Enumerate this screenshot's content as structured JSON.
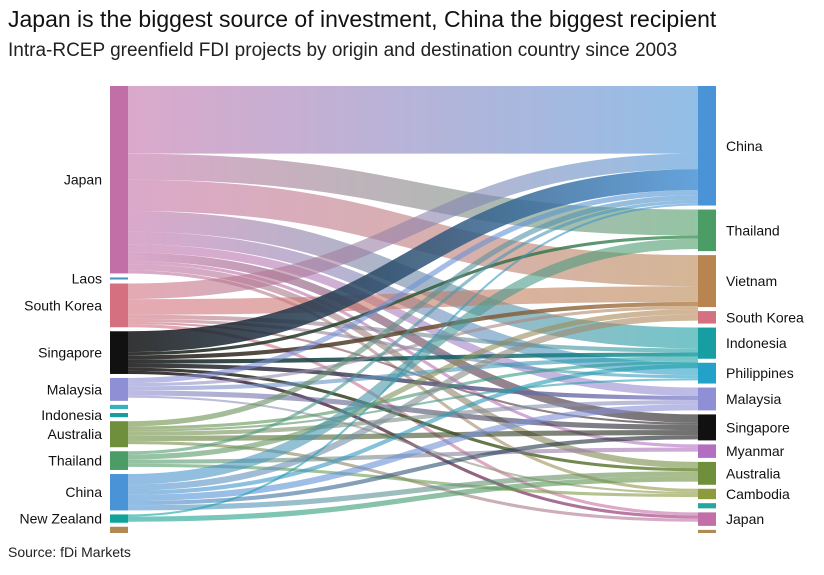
{
  "title": "Japan is the biggest source of investment, China the biggest recipient",
  "subtitle": "Intra-RCEP greenfield FDI projects by origin and destination country since 2003",
  "source": "Source: fDi Markets",
  "chart_data": {
    "type": "sankey",
    "origins": [
      {
        "name": "Japan",
        "value": 180,
        "color": "#c26fa7"
      },
      {
        "name": "Laos",
        "value": 2,
        "color": "#4a93c9"
      },
      {
        "name": "South Korea",
        "value": 42,
        "color": "#d4707f"
      },
      {
        "name": "Singapore",
        "value": 41,
        "color": "#111111"
      },
      {
        "name": "Malaysia",
        "value": 22,
        "color": "#8f8fd6"
      },
      {
        "name": "",
        "value": 4,
        "color": "#36b2bd"
      },
      {
        "name": "Indonesia",
        "value": 4,
        "color": "#169e9e"
      },
      {
        "name": "Australia",
        "value": 25,
        "color": "#6f8f3d"
      },
      {
        "name": "Thailand",
        "value": 18,
        "color": "#4c9c66"
      },
      {
        "name": "China",
        "value": 35,
        "color": "#4a93d6"
      },
      {
        "name": "New Zealand",
        "value": 8,
        "color": "#11a39a"
      },
      {
        "name": "",
        "value": 6,
        "color": "#b08a55"
      }
    ],
    "destinations": [
      {
        "name": "China",
        "value": 115,
        "color": "#4a93d6"
      },
      {
        "name": "Thailand",
        "value": 40,
        "color": "#4c9c66"
      },
      {
        "name": "Vietnam",
        "value": 50,
        "color": "#b88550"
      },
      {
        "name": "South Korea",
        "value": 12,
        "color": "#d4707f"
      },
      {
        "name": "Indonesia",
        "value": 30,
        "color": "#169ea3"
      },
      {
        "name": "Philippines",
        "value": 20,
        "color": "#23a1c9"
      },
      {
        "name": "Malaysia",
        "value": 22,
        "color": "#8f8fd6"
      },
      {
        "name": "Singapore",
        "value": 25,
        "color": "#111111"
      },
      {
        "name": "Myanmar",
        "value": 13,
        "color": "#b26fc2"
      },
      {
        "name": "Australia",
        "value": 22,
        "color": "#6f8f3d"
      },
      {
        "name": "Cambodia",
        "value": 10,
        "color": "#8e9a3e"
      },
      {
        "name": "",
        "value": 5,
        "color": "#27a5a0"
      },
      {
        "name": "Japan",
        "value": 13,
        "color": "#c26fa7"
      },
      {
        "name": "",
        "value": 3,
        "color": "#b08a55"
      }
    ],
    "flows": [
      {
        "from": "Japan",
        "to": "China",
        "value": 65
      },
      {
        "from": "Japan",
        "to": "Thailand",
        "value": 25
      },
      {
        "from": "Japan",
        "to": "Vietnam",
        "value": 30
      },
      {
        "from": "Japan",
        "to": "Indonesia",
        "value": 20
      },
      {
        "from": "Japan",
        "to": "Philippines",
        "value": 12
      },
      {
        "from": "Japan",
        "to": "Malaysia",
        "value": 8
      },
      {
        "from": "Japan",
        "to": "Singapore",
        "value": 8
      },
      {
        "from": "Japan",
        "to": "Australia",
        "value": 6
      },
      {
        "from": "Japan",
        "to": "Myanmar",
        "value": 3
      },
      {
        "from": "Japan",
        "to": "Cambodia",
        "value": 3
      },
      {
        "from": "South Korea",
        "to": "China",
        "value": 15
      },
      {
        "from": "South Korea",
        "to": "Vietnam",
        "value": 15
      },
      {
        "from": "South Korea",
        "to": "Indonesia",
        "value": 4
      },
      {
        "from": "South Korea",
        "to": "Philippines",
        "value": 3
      },
      {
        "from": "South Korea",
        "to": "Singapore",
        "value": 2
      },
      {
        "from": "South Korea",
        "to": "Japan",
        "value": 3
      },
      {
        "from": "Singapore",
        "to": "China",
        "value": 20
      },
      {
        "from": "Singapore",
        "to": "Thailand",
        "value": 3
      },
      {
        "from": "Singapore",
        "to": "Vietnam",
        "value": 4
      },
      {
        "from": "Singapore",
        "to": "Indonesia",
        "value": 4
      },
      {
        "from": "Singapore",
        "to": "Malaysia",
        "value": 4
      },
      {
        "from": "Singapore",
        "to": "Australia",
        "value": 3
      },
      {
        "from": "Singapore",
        "to": "Japan",
        "value": 3
      },
      {
        "from": "Malaysia",
        "to": "China",
        "value": 5
      },
      {
        "from": "Malaysia",
        "to": "Indonesia",
        "value": 4
      },
      {
        "from": "Malaysia",
        "to": "Singapore",
        "value": 5
      },
      {
        "from": "Malaysia",
        "to": "Vietnam",
        "value": 3
      },
      {
        "from": "Malaysia",
        "to": "Cambodia",
        "value": 2
      },
      {
        "from": "Australia",
        "to": "China",
        "value": 5
      },
      {
        "from": "Australia",
        "to": "Singapore",
        "value": 5
      },
      {
        "from": "Australia",
        "to": "Malaysia",
        "value": 4
      },
      {
        "from": "Australia",
        "to": "Indonesia",
        "value": 3
      },
      {
        "from": "Australia",
        "to": "Philippines",
        "value": 2
      },
      {
        "from": "Australia",
        "to": "Japan",
        "value": 3
      },
      {
        "from": "Thailand",
        "to": "Vietnam",
        "value": 5
      },
      {
        "from": "Thailand",
        "to": "Myanmar",
        "value": 4
      },
      {
        "from": "Thailand",
        "to": "Cambodia",
        "value": 3
      },
      {
        "from": "Thailand",
        "to": "China",
        "value": 3
      },
      {
        "from": "China",
        "to": "Thailand",
        "value": 10
      },
      {
        "from": "China",
        "to": "Vietnam",
        "value": 6
      },
      {
        "from": "China",
        "to": "Malaysia",
        "value": 6
      },
      {
        "from": "China",
        "to": "Indonesia",
        "value": 4
      },
      {
        "from": "China",
        "to": "Singapore",
        "value": 4
      },
      {
        "from": "China",
        "to": "Australia",
        "value": 5
      },
      {
        "from": "New Zealand",
        "to": "Australia",
        "value": 5
      },
      {
        "from": "New Zealand",
        "to": "China",
        "value": 2
      }
    ]
  }
}
